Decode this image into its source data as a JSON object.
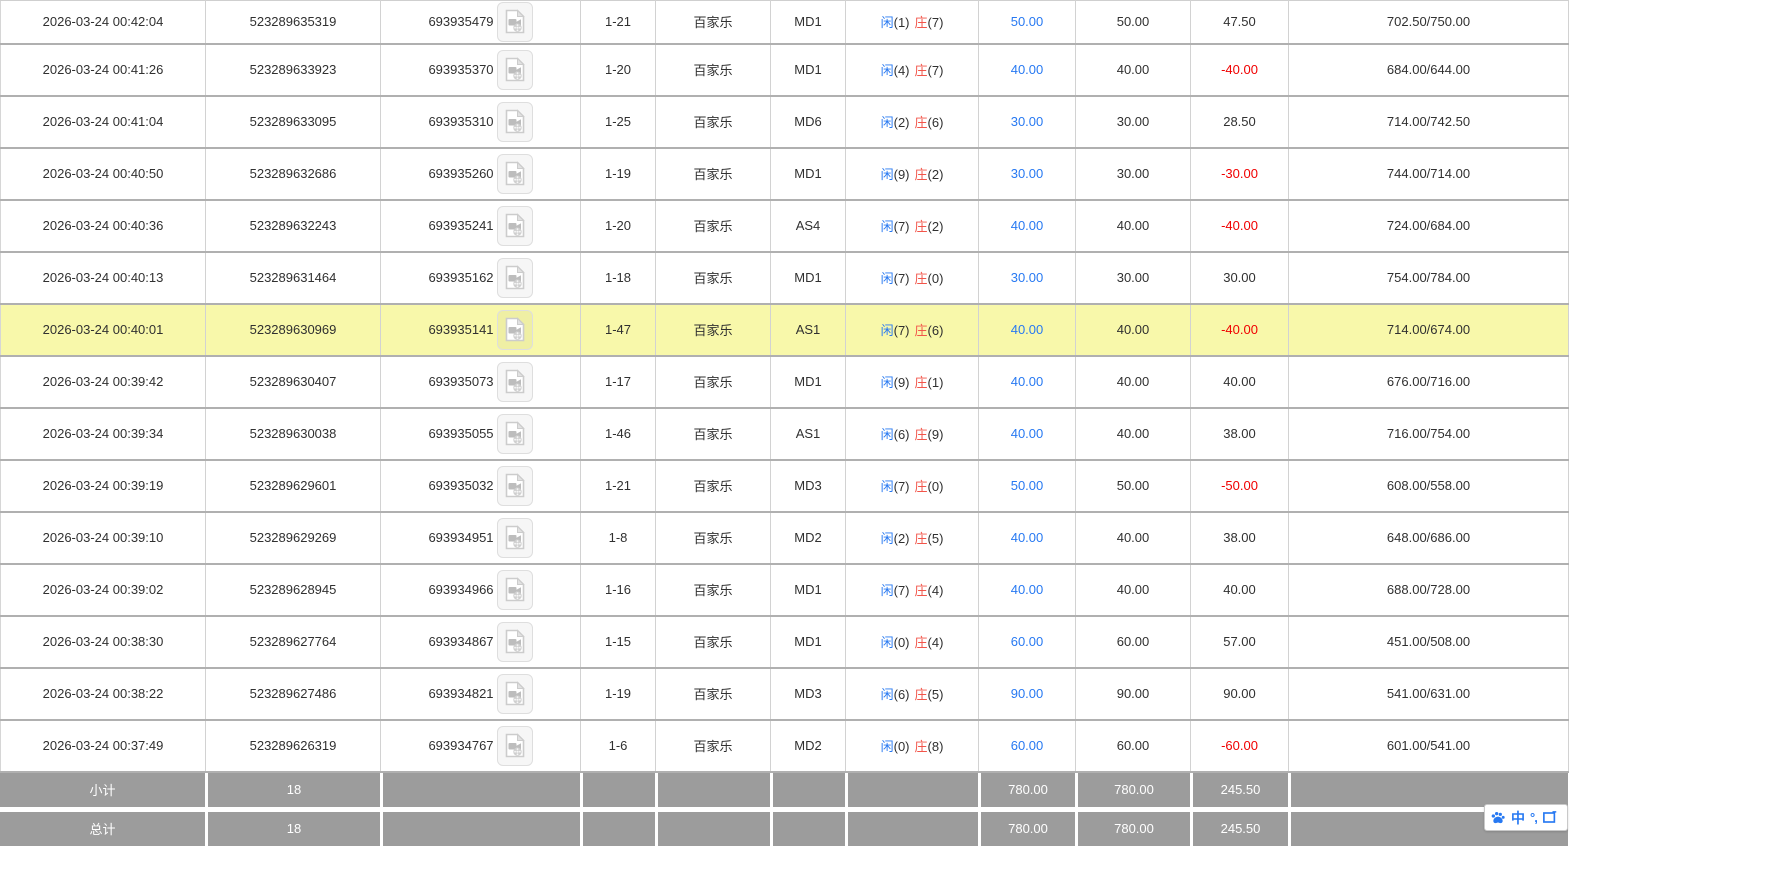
{
  "table": {
    "rows": [
      {
        "time": "2026-03-24 00:42:04",
        "bet_id": "523289635319",
        "round_id": "693935479",
        "game_round": "1-21",
        "game_type": "百家乐",
        "table_id": "MD1",
        "result": {
          "xian": "闲",
          "xian_n": "(1)",
          "zhuang": "庄",
          "zhuang_n": "(7)"
        },
        "bet": "50.00",
        "valid": "50.00",
        "win_loss": "47.50",
        "balance": "702.50/750.00",
        "highlighted": false
      },
      {
        "time": "2026-03-24 00:41:26",
        "bet_id": "523289633923",
        "round_id": "693935370",
        "game_round": "1-20",
        "game_type": "百家乐",
        "table_id": "MD1",
        "result": {
          "xian": "闲",
          "xian_n": "(4)",
          "zhuang": "庄",
          "zhuang_n": "(7)"
        },
        "bet": "40.00",
        "valid": "40.00",
        "win_loss": "-40.00",
        "balance": "684.00/644.00",
        "highlighted": false
      },
      {
        "time": "2026-03-24 00:41:04",
        "bet_id": "523289633095",
        "round_id": "693935310",
        "game_round": "1-25",
        "game_type": "百家乐",
        "table_id": "MD6",
        "result": {
          "xian": "闲",
          "xian_n": "(2)",
          "zhuang": "庄",
          "zhuang_n": "(6)"
        },
        "bet": "30.00",
        "valid": "30.00",
        "win_loss": "28.50",
        "balance": "714.00/742.50",
        "highlighted": false
      },
      {
        "time": "2026-03-24 00:40:50",
        "bet_id": "523289632686",
        "round_id": "693935260",
        "game_round": "1-19",
        "game_type": "百家乐",
        "table_id": "MD1",
        "result": {
          "xian": "闲",
          "xian_n": "(9)",
          "zhuang": "庄",
          "zhuang_n": "(2)"
        },
        "bet": "30.00",
        "valid": "30.00",
        "win_loss": "-30.00",
        "balance": "744.00/714.00",
        "highlighted": false
      },
      {
        "time": "2026-03-24 00:40:36",
        "bet_id": "523289632243",
        "round_id": "693935241",
        "game_round": "1-20",
        "game_type": "百家乐",
        "table_id": "AS4",
        "result": {
          "xian": "闲",
          "xian_n": "(7)",
          "zhuang": "庄",
          "zhuang_n": "(2)"
        },
        "bet": "40.00",
        "valid": "40.00",
        "win_loss": "-40.00",
        "balance": "724.00/684.00",
        "highlighted": false
      },
      {
        "time": "2026-03-24 00:40:13",
        "bet_id": "523289631464",
        "round_id": "693935162",
        "game_round": "1-18",
        "game_type": "百家乐",
        "table_id": "MD1",
        "result": {
          "xian": "闲",
          "xian_n": "(7)",
          "zhuang": "庄",
          "zhuang_n": "(0)"
        },
        "bet": "30.00",
        "valid": "30.00",
        "win_loss": "30.00",
        "balance": "754.00/784.00",
        "highlighted": false
      },
      {
        "time": "2026-03-24 00:40:01",
        "bet_id": "523289630969",
        "round_id": "693935141",
        "game_round": "1-47",
        "game_type": "百家乐",
        "table_id": "AS1",
        "result": {
          "xian": "闲",
          "xian_n": "(7)",
          "zhuang": "庄",
          "zhuang_n": "(6)"
        },
        "bet": "40.00",
        "valid": "40.00",
        "win_loss": "-40.00",
        "balance": "714.00/674.00",
        "highlighted": true
      },
      {
        "time": "2026-03-24 00:39:42",
        "bet_id": "523289630407",
        "round_id": "693935073",
        "game_round": "1-17",
        "game_type": "百家乐",
        "table_id": "MD1",
        "result": {
          "xian": "闲",
          "xian_n": "(9)",
          "zhuang": "庄",
          "zhuang_n": "(1)"
        },
        "bet": "40.00",
        "valid": "40.00",
        "win_loss": "40.00",
        "balance": "676.00/716.00",
        "highlighted": false
      },
      {
        "time": "2026-03-24 00:39:34",
        "bet_id": "523289630038",
        "round_id": "693935055",
        "game_round": "1-46",
        "game_type": "百家乐",
        "table_id": "AS1",
        "result": {
          "xian": "闲",
          "xian_n": "(6)",
          "zhuang": "庄",
          "zhuang_n": "(9)"
        },
        "bet": "40.00",
        "valid": "40.00",
        "win_loss": "38.00",
        "balance": "716.00/754.00",
        "highlighted": false
      },
      {
        "time": "2026-03-24 00:39:19",
        "bet_id": "523289629601",
        "round_id": "693935032",
        "game_round": "1-21",
        "game_type": "百家乐",
        "table_id": "MD3",
        "result": {
          "xian": "闲",
          "xian_n": "(7)",
          "zhuang": "庄",
          "zhuang_n": "(0)"
        },
        "bet": "50.00",
        "valid": "50.00",
        "win_loss": "-50.00",
        "balance": "608.00/558.00",
        "highlighted": false
      },
      {
        "time": "2026-03-24 00:39:10",
        "bet_id": "523289629269",
        "round_id": "693934951",
        "game_round": "1-8",
        "game_type": "百家乐",
        "table_id": "MD2",
        "result": {
          "xian": "闲",
          "xian_n": "(2)",
          "zhuang": "庄",
          "zhuang_n": "(5)"
        },
        "bet": "40.00",
        "valid": "40.00",
        "win_loss": "38.00",
        "balance": "648.00/686.00",
        "highlighted": false
      },
      {
        "time": "2026-03-24 00:39:02",
        "bet_id": "523289628945",
        "round_id": "693934966",
        "game_round": "1-16",
        "game_type": "百家乐",
        "table_id": "MD1",
        "result": {
          "xian": "闲",
          "xian_n": "(7)",
          "zhuang": "庄",
          "zhuang_n": "(4)"
        },
        "bet": "40.00",
        "valid": "40.00",
        "win_loss": "40.00",
        "balance": "688.00/728.00",
        "highlighted": false
      },
      {
        "time": "2026-03-24 00:38:30",
        "bet_id": "523289627764",
        "round_id": "693934867",
        "game_round": "1-15",
        "game_type": "百家乐",
        "table_id": "MD1",
        "result": {
          "xian": "闲",
          "xian_n": "(0)",
          "zhuang": "庄",
          "zhuang_n": "(4)"
        },
        "bet": "60.00",
        "valid": "60.00",
        "win_loss": "57.00",
        "balance": "451.00/508.00",
        "highlighted": false
      },
      {
        "time": "2026-03-24 00:38:22",
        "bet_id": "523289627486",
        "round_id": "693934821",
        "game_round": "1-19",
        "game_type": "百家乐",
        "table_id": "MD3",
        "result": {
          "xian": "闲",
          "xian_n": "(6)",
          "zhuang": "庄",
          "zhuang_n": "(5)"
        },
        "bet": "90.00",
        "valid": "90.00",
        "win_loss": "90.00",
        "balance": "541.00/631.00",
        "highlighted": false
      },
      {
        "time": "2026-03-24 00:37:49",
        "bet_id": "523289626319",
        "round_id": "693934767",
        "game_round": "1-6",
        "game_type": "百家乐",
        "table_id": "MD2",
        "result": {
          "xian": "闲",
          "xian_n": "(0)",
          "zhuang": "庄",
          "zhuang_n": "(8)"
        },
        "bet": "60.00",
        "valid": "60.00",
        "win_loss": "-60.00",
        "balance": "601.00/541.00",
        "highlighted": false
      }
    ],
    "subtotal": {
      "label": "小计",
      "count": "18",
      "bet": "780.00",
      "valid": "780.00",
      "win_loss": "245.50"
    },
    "total": {
      "label": "总计",
      "count": "18",
      "bet": "780.00",
      "valid": "780.00",
      "win_loss": "245.50"
    }
  },
  "ime_toolbar": {
    "paw_icon": "baidu-paw-icon",
    "mode_label": "中",
    "punct_label": "°,",
    "keyboard_icon": "ime-keyboard-icon"
  },
  "colors": {
    "link_blue": "#2779f2",
    "loss_red": "#f00000",
    "zhuang_red": "#f2554a",
    "xian_blue": "#2779f2",
    "highlight_yellow": "#f8f8aa",
    "footer_gray": "#9c9c9c"
  }
}
